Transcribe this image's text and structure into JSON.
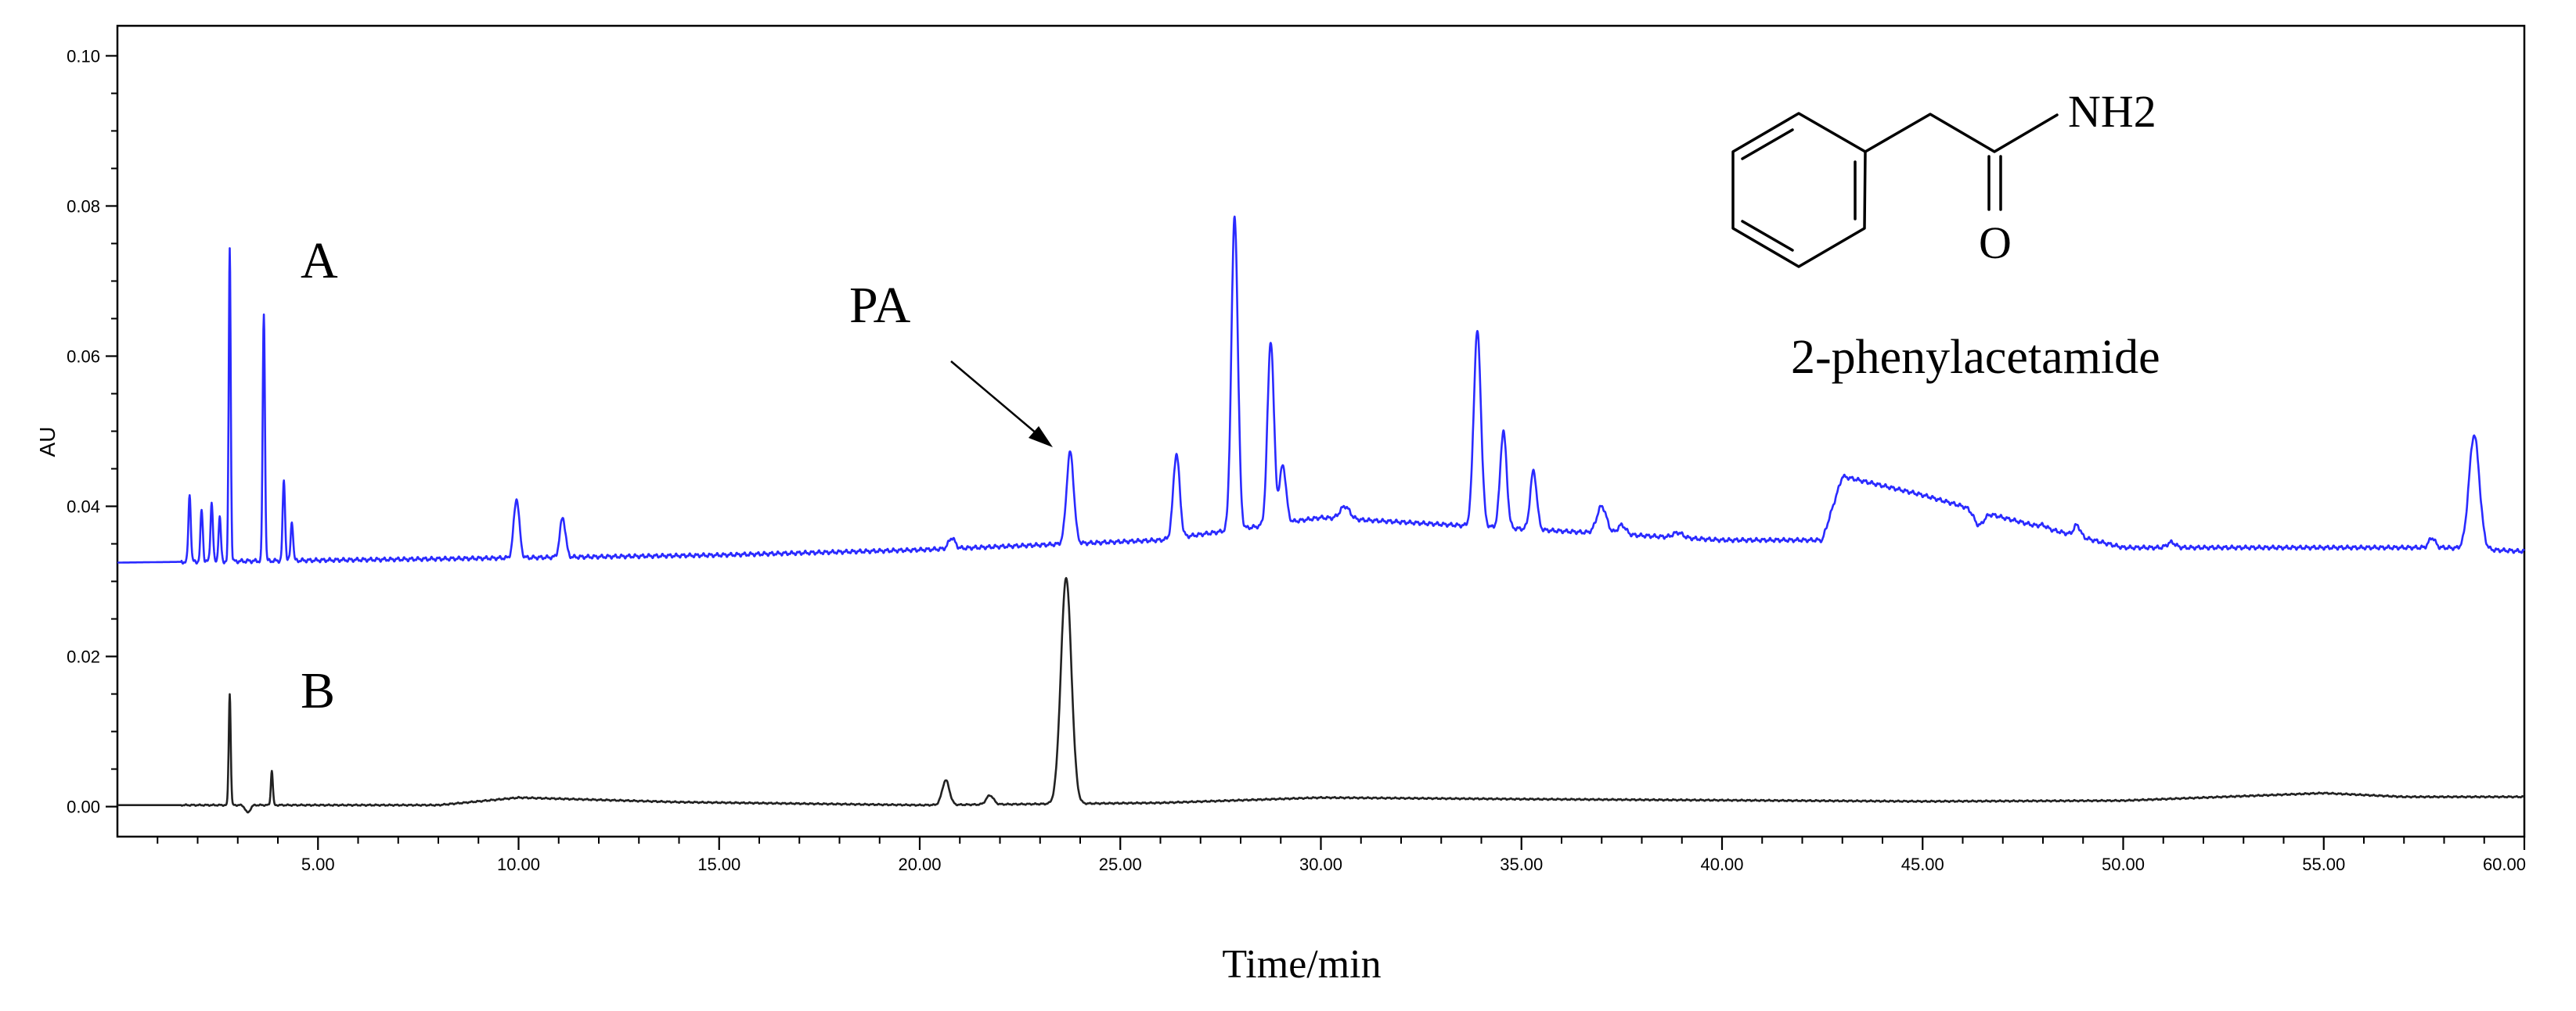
{
  "chart_data": {
    "type": "line",
    "title": "",
    "xlabel": "Time/min",
    "ylabel": "AU",
    "xlim": [
      0,
      60
    ],
    "ylim": [
      -0.004,
      0.104
    ],
    "x_ticks": [
      5,
      10,
      15,
      20,
      25,
      30,
      35,
      40,
      45,
      50,
      55,
      60
    ],
    "x_tick_labels": [
      "5.00",
      "10.00",
      "15.00",
      "20.00",
      "25.00",
      "30.00",
      "35.00",
      "40.00",
      "45.00",
      "50.00",
      "55.00",
      "60.00"
    ],
    "y_ticks": [
      0,
      0.02,
      0.04,
      0.06,
      0.08,
      0.1
    ],
    "y_tick_labels": [
      "0.00",
      "0.02",
      "0.04",
      "0.06",
      "0.08",
      "0.10"
    ],
    "grid": false,
    "series": [
      {
        "name": "A",
        "color": "#2a2aff",
        "baseline": [
          [
            0,
            0.0325
          ],
          [
            8,
            0.033
          ],
          [
            15,
            0.0335
          ],
          [
            20,
            0.0342
          ],
          [
            26,
            0.0355
          ],
          [
            30,
            0.0385
          ],
          [
            35,
            0.037
          ],
          [
            40,
            0.0355
          ],
          [
            42.5,
            0.0355
          ],
          [
            43.0,
            0.044
          ],
          [
            45.0,
            0.0415
          ],
          [
            47.0,
            0.0385
          ],
          [
            50.0,
            0.0345
          ],
          [
            55.0,
            0.0345
          ],
          [
            58.0,
            0.0345
          ],
          [
            60,
            0.034
          ]
        ],
        "peaks": [
          [
            1.8,
            0.0415,
            0.03
          ],
          [
            2.1,
            0.0395,
            0.03
          ],
          [
            2.35,
            0.0405,
            0.03
          ],
          [
            2.55,
            0.0385,
            0.03
          ],
          [
            2.8,
            0.0745,
            0.025
          ],
          [
            3.65,
            0.0655,
            0.028
          ],
          [
            4.15,
            0.0435,
            0.03
          ],
          [
            4.35,
            0.038,
            0.03
          ],
          [
            9.95,
            0.041,
            0.07
          ],
          [
            11.1,
            0.0385,
            0.07
          ],
          [
            20.8,
            0.0358,
            0.08
          ],
          [
            23.75,
            0.0472,
            0.09
          ],
          [
            26.4,
            0.047,
            0.08
          ],
          [
            27.85,
            0.0785,
            0.08
          ],
          [
            28.75,
            0.062,
            0.08
          ],
          [
            29.05,
            0.0455,
            0.08
          ],
          [
            30.6,
            0.04,
            0.12
          ],
          [
            33.9,
            0.0633,
            0.09
          ],
          [
            34.55,
            0.05,
            0.08
          ],
          [
            35.3,
            0.0447,
            0.08
          ],
          [
            37.0,
            0.04,
            0.12
          ],
          [
            37.5,
            0.0375,
            0.1
          ],
          [
            38.9,
            0.0365,
            0.12
          ],
          [
            46.4,
            0.0375,
            0.12
          ],
          [
            48.0,
            0.0375,
            0.09
          ],
          [
            48.85,
            0.0375,
            0.08
          ],
          [
            51.2,
            0.0352,
            0.1
          ],
          [
            57.7,
            0.0358,
            0.08
          ],
          [
            58.75,
            0.0495,
            0.13
          ]
        ]
      },
      {
        "name": "B",
        "color": "#222222",
        "baseline": [
          [
            0,
            0.0002
          ],
          [
            8,
            0.0002
          ],
          [
            10,
            0.0012
          ],
          [
            14,
            0.0006
          ],
          [
            20,
            0.0002
          ],
          [
            26,
            0.0005
          ],
          [
            30,
            0.0012
          ],
          [
            35,
            0.001
          ],
          [
            45,
            0.0007
          ],
          [
            50,
            0.0008
          ],
          [
            55,
            0.0018
          ],
          [
            57,
            0.0013
          ],
          [
            60,
            0.0013
          ]
        ],
        "peaks": [
          [
            2.8,
            0.015,
            0.025
          ],
          [
            3.25,
            -0.0008,
            0.06
          ],
          [
            3.85,
            0.0048,
            0.025
          ],
          [
            20.65,
            0.0035,
            0.09
          ],
          [
            21.75,
            0.0015,
            0.09
          ],
          [
            23.65,
            0.0305,
            0.13
          ]
        ]
      }
    ],
    "annotations": [
      {
        "text": "A",
        "x": 5.3,
        "y": 0.077
      },
      {
        "text": "B",
        "x": 5.3,
        "y": 0.016
      },
      {
        "text": "PA",
        "x": 18.9,
        "y": 0.066,
        "arrow_to": [
          23.65,
          0.0495
        ]
      }
    ],
    "structure": {
      "name": "2-phenylacetamide",
      "atoms": [
        "NH2",
        "O"
      ]
    }
  }
}
